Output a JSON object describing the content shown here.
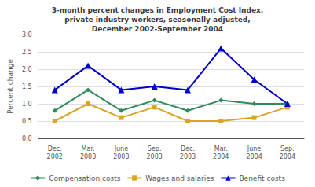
{
  "chart_data": {
    "type": "line",
    "title": "3-month percent changes in Employment Cost Index,\nprivate industry workers, seasonally adjusted,\nDecember 2002-September 2004",
    "y_label": "Percent change",
    "categories": [
      "Dec.\n2002",
      "Mar.\n2003",
      "June\n2003",
      "Sep.\n2003",
      "Dec.\n2003",
      "Mar.\n2004",
      "June\n2004",
      "Sep.\n2004"
    ],
    "series": [
      {
        "name": "Compensation costs",
        "color": "#2e8b57",
        "marker": "diamond",
        "values": [
          0.8,
          1.4,
          0.8,
          1.1,
          0.8,
          1.1,
          1.0,
          1.0
        ]
      },
      {
        "name": "Wages and salaries",
        "color": "#daa520",
        "marker": "square",
        "values": [
          0.5,
          1.0,
          0.6,
          0.9,
          0.5,
          0.5,
          0.6,
          0.9
        ]
      },
      {
        "name": "Benefit costs",
        "color": "#0000cc",
        "marker": "triangle",
        "values": [
          1.4,
          2.1,
          1.4,
          1.5,
          1.4,
          2.6,
          1.7,
          1.0
        ]
      }
    ],
    "ylim": [
      0.0,
      3.0
    ],
    "yticks": [
      {
        "value": 0,
        "label": "0.0"
      },
      0.5,
      {
        "value": 1,
        "label": "1.0"
      },
      1.5,
      {
        "value": 2,
        "label": "2.0"
      },
      2.5,
      {
        "value": 3,
        "label": "3.0"
      }
    ],
    "grid": true,
    "legend": "bottom"
  }
}
